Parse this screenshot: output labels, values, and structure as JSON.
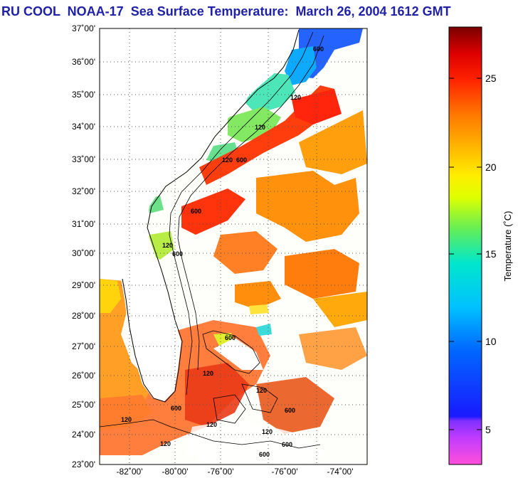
{
  "title": {
    "text": "RU COOL  NOAA-17  Sea Surface Temperature:  March 26, 2004 1612 GMT",
    "color": "#1f21a8"
  },
  "map": {
    "lat_labels": [
      "37˚00'",
      "36˚00'",
      "35˚00'",
      "34˚00'",
      "33˚00'",
      "32˚00'",
      "31˚00'",
      "30˚00'",
      "29˚00'",
      "28˚00'",
      "27˚00'",
      "26˚00'",
      "25˚00'",
      "24˚00'",
      "23˚00'"
    ],
    "lon_labels": [
      "-82˚00'",
      "-80˚00'",
      "-76˚00'",
      "-76˚00'",
      "-74˚00'"
    ],
    "isobath_labels": [
      "600",
      "120",
      "120",
      "600",
      "120",
      "600",
      "120",
      "600",
      "600",
      "120",
      "120",
      "120",
      "120",
      "600",
      "120",
      "600",
      "120",
      "600",
      "600"
    ],
    "grid": true
  },
  "colorbar": {
    "title": "Temperature (˚C)",
    "ticks": [
      "25",
      "20",
      "15",
      "10",
      "5"
    ],
    "tick_values": [
      25,
      20,
      15,
      10,
      5
    ],
    "range": [
      3,
      28.5
    ],
    "colors": [
      "#ff4fd8",
      "#c23cff",
      "#7f2fff",
      "#1a1aff",
      "#0066ff",
      "#00b2ff",
      "#00e6e6",
      "#33e699",
      "#99ee33",
      "#ffff00",
      "#ffcc00",
      "#ff9900",
      "#ff6600",
      "#ff2a00",
      "#ee0000",
      "#b30000",
      "#7a0000"
    ]
  }
}
